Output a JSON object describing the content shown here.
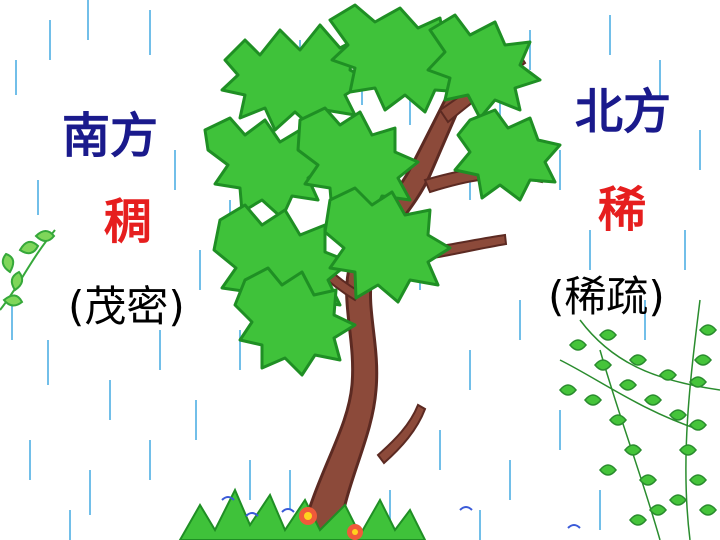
{
  "south": {
    "title": "南方",
    "char": "稠",
    "desc": "(茂密)"
  },
  "north": {
    "title": "北方",
    "char": "稀",
    "desc": "(稀疏)"
  },
  "colors": {
    "title": "#1a1a8c",
    "char": "#e61e1e",
    "desc": "#000000",
    "leaf": "#3fc23a",
    "leaf_dark": "#1f8f24",
    "trunk": "#8c4a3a",
    "trunk_dark": "#5c2a22",
    "rain": "#5ab4e6",
    "vine": "#36a83a"
  },
  "icons": [
    "tree-illustration",
    "rain-streaks",
    "vine-left",
    "vine-right",
    "flower-icon"
  ]
}
